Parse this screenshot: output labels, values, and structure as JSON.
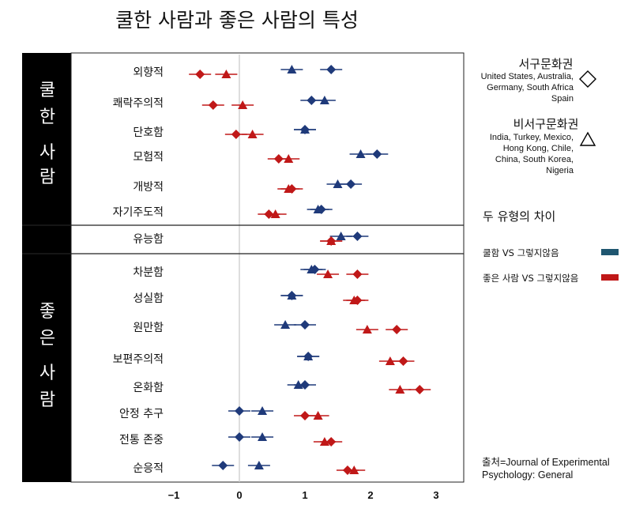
{
  "chart_data": {
    "type": "scatter",
    "title": "쿨한 사람과 좋은 사람의 특성",
    "xlim": [
      -1.3,
      3.3
    ],
    "xticks": [
      "−1",
      "0",
      "1",
      "2",
      "3"
    ],
    "xtick_values": [
      -1,
      0,
      1,
      2,
      3
    ],
    "groups": [
      {
        "label_chars": [
          "쿨",
          "한",
          "사",
          "람"
        ],
        "rows": [
          0,
          5
        ]
      },
      {
        "label_chars": [
          "좋",
          "은",
          "사",
          "람"
        ],
        "rows": [
          7,
          14
        ]
      }
    ],
    "categories": [
      "외향적",
      "쾌락주의적",
      "단호함",
      "모험적",
      "개방적",
      "자기주도적",
      "유능함",
      "차분함",
      "성실함",
      "원만함",
      "보편주의적",
      "온화함",
      "안정 추구",
      "전통 존중",
      "순응적"
    ],
    "series": [
      {
        "name": "쿨함 VS 그렇지않음",
        "group": "서구문화권",
        "marker": "diamond",
        "color": "#1f3a7a",
        "values": [
          1.4,
          1.1,
          1.0,
          2.1,
          1.7,
          1.25,
          1.8,
          1.15,
          0.8,
          1.0,
          1.05,
          1.0,
          0.0,
          0.0,
          -0.25
        ]
      },
      {
        "name": "쿨함 VS 그렇지않음",
        "group": "비서구문화권",
        "marker": "triangle",
        "color": "#1f3a7a",
        "values": [
          0.8,
          1.3,
          1.0,
          1.85,
          1.5,
          1.2,
          1.55,
          1.1,
          0.8,
          0.7,
          1.05,
          0.9,
          0.35,
          0.35,
          0.3
        ]
      },
      {
        "name": "좋은 사람 VS 그렇지않음",
        "group": "서구문화권",
        "marker": "diamond",
        "color": "#c01818",
        "values": [
          -0.6,
          -0.4,
          -0.05,
          0.6,
          0.8,
          0.45,
          1.4,
          1.8,
          1.8,
          2.4,
          2.5,
          2.75,
          1.0,
          1.4,
          1.65
        ]
      },
      {
        "name": "좋은 사람 VS 그렇지않음",
        "group": "비서구문화권",
        "marker": "triangle",
        "color": "#c01818",
        "values": [
          -0.2,
          0.05,
          0.2,
          0.75,
          0.75,
          0.55,
          1.4,
          1.35,
          1.75,
          1.95,
          2.3,
          2.45,
          1.2,
          1.3,
          1.75
        ]
      }
    ],
    "legend": {
      "western_title": "서구문화권",
      "western_countries": [
        "United States, Australia,",
        "Germany, South Africa",
        "Spain"
      ],
      "nonwestern_title": "비서구문화권",
      "nonwestern_countries": [
        "India, Turkey, Mexico,",
        "Hong Kong, Chile,",
        "China, South Korea,",
        "Nigeria"
      ],
      "diff_title": "두 유형의 차이",
      "diff_items": [
        "쿨함 VS 그렇지않음",
        "좋은 사람 VS 그렇지않음"
      ],
      "diff_colors": [
        "#1f5670",
        "#c01818"
      ]
    },
    "source": [
      "출처=Journal of Experimental",
      "Psychology: General"
    ]
  }
}
